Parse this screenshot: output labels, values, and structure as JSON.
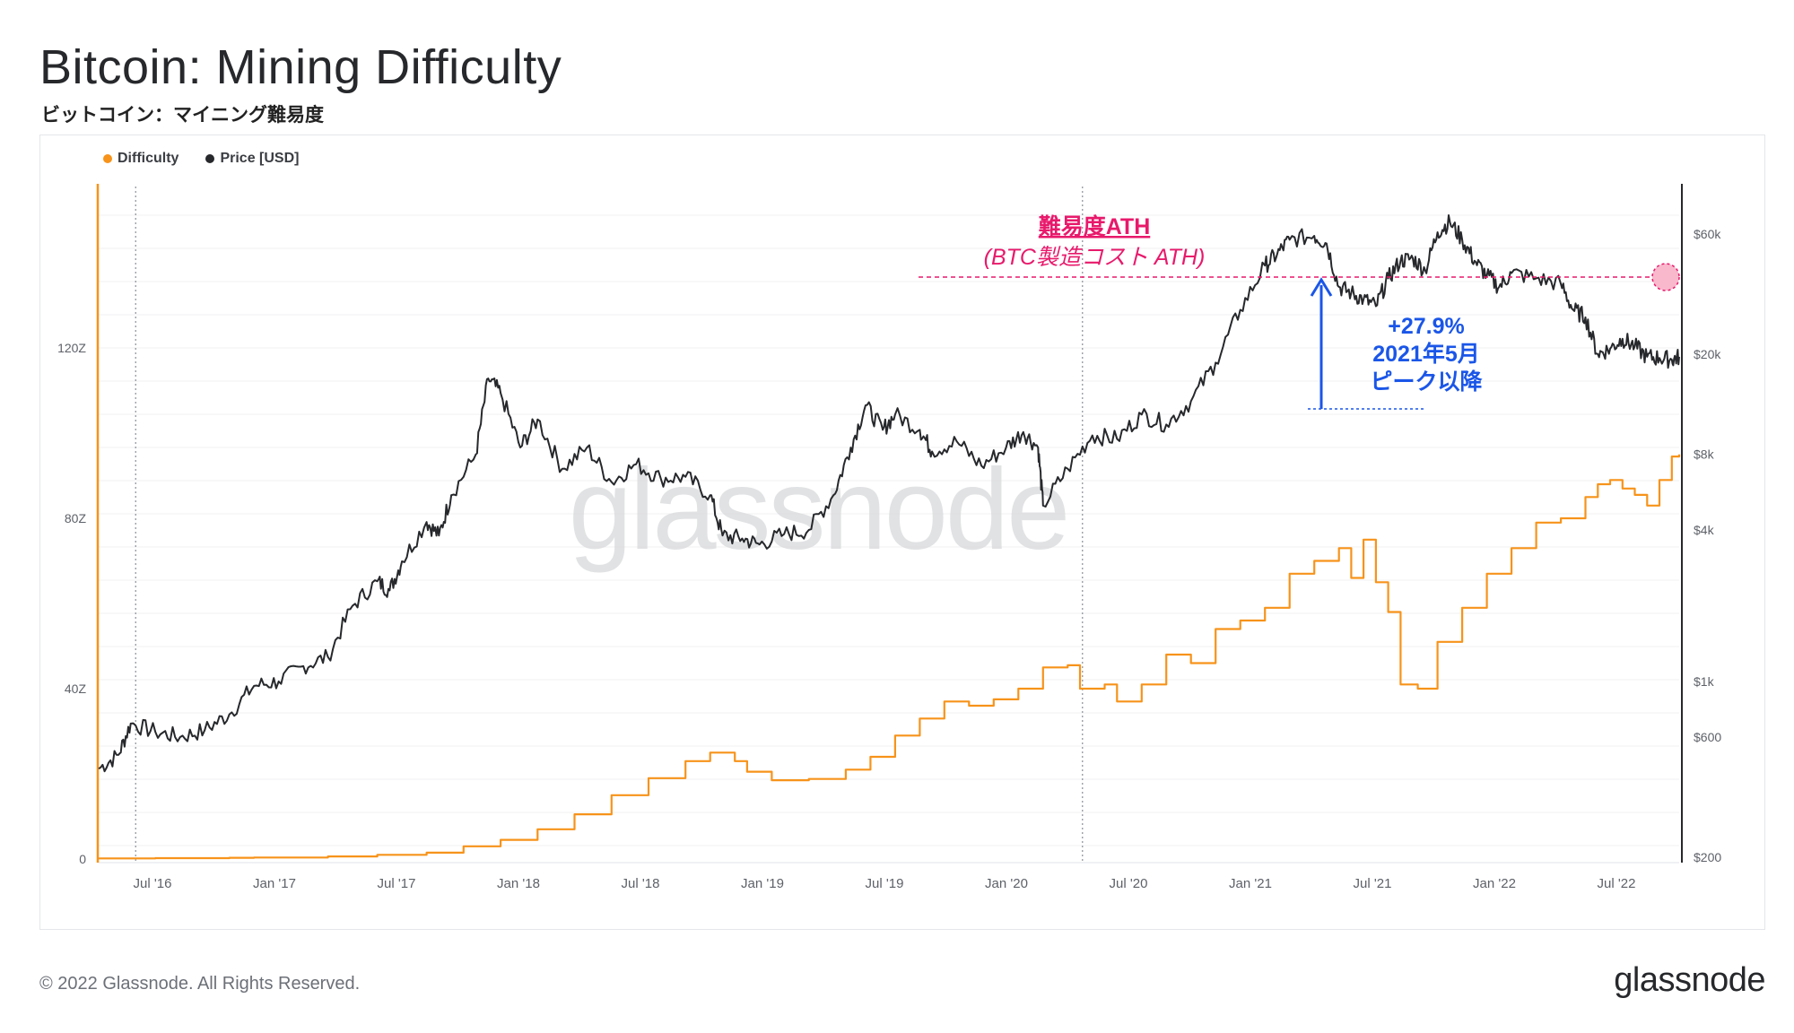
{
  "header": {
    "title": "Bitcoin: Mining Difficulty",
    "subtitle": "ビットコイン：マイニング難易度"
  },
  "legend": [
    {
      "label": "Difficulty",
      "color": "#f7931a"
    },
    {
      "label": "Price [USD]",
      "color": "#26282b"
    }
  ],
  "footer": {
    "copyright": "© 2022 Glassnode. All Rights Reserved.",
    "brand": "glassnode"
  },
  "watermark": "glassnode",
  "annotations": {
    "ath_title": "難易度ATH",
    "ath_sub": "(BTC製造コスト ATH)",
    "change_pct": "+27.9%",
    "change_line2": "2021年5月",
    "change_line3": "ピーク以降"
  },
  "chart_data": {
    "type": "line",
    "title": "Bitcoin: Mining Difficulty",
    "x_ticks": [
      "Jul '16",
      "Jan '17",
      "Jul '17",
      "Jan '18",
      "Jul '18",
      "Jan '19",
      "Jul '19",
      "Jan '20",
      "Jul '20",
      "Jan '21",
      "Jul '21",
      "Jan '22",
      "Jul '22"
    ],
    "x_range": [
      2016.37,
      2022.78
    ],
    "left_axis": {
      "label": "Difficulty",
      "ticks": [
        "0",
        "40Z",
        "80Z",
        "120Z"
      ],
      "tick_values": [
        0,
        40,
        80,
        120
      ],
      "range": [
        0,
        160
      ]
    },
    "right_axis": {
      "label": "Price [USD]",
      "scale": "log",
      "ticks": [
        "$200",
        "$600",
        "$1k",
        "$4k",
        "$8k",
        "$20k",
        "$60k"
      ],
      "tick_values": [
        200,
        600,
        1000,
        4000,
        8000,
        20000,
        60000
      ],
      "range": [
        200,
        90000
      ]
    },
    "series": [
      {
        "name": "Difficulty",
        "color": "#f7931a",
        "axis": "left",
        "points": [
          [
            2016.37,
            0.15
          ],
          [
            2016.6,
            0.2
          ],
          [
            2016.9,
            0.3
          ],
          [
            2017.0,
            0.35
          ],
          [
            2017.3,
            0.6
          ],
          [
            2017.5,
            1.0
          ],
          [
            2017.7,
            1.5
          ],
          [
            2017.85,
            3.0
          ],
          [
            2018.0,
            4.5
          ],
          [
            2018.15,
            7
          ],
          [
            2018.3,
            10.5
          ],
          [
            2018.45,
            15
          ],
          [
            2018.6,
            19
          ],
          [
            2018.75,
            23
          ],
          [
            2018.85,
            25
          ],
          [
            2018.95,
            23
          ],
          [
            2019.0,
            20.5
          ],
          [
            2019.1,
            18.5
          ],
          [
            2019.25,
            18.8
          ],
          [
            2019.4,
            21
          ],
          [
            2019.5,
            24
          ],
          [
            2019.6,
            29
          ],
          [
            2019.7,
            33
          ],
          [
            2019.8,
            37
          ],
          [
            2019.9,
            36
          ],
          [
            2020.0,
            37.5
          ],
          [
            2020.1,
            40
          ],
          [
            2020.2,
            45
          ],
          [
            2020.3,
            45.5
          ],
          [
            2020.35,
            40
          ],
          [
            2020.45,
            41
          ],
          [
            2020.5,
            37
          ],
          [
            2020.6,
            41
          ],
          [
            2020.7,
            48
          ],
          [
            2020.8,
            46
          ],
          [
            2020.9,
            54
          ],
          [
            2021.0,
            56
          ],
          [
            2021.1,
            59
          ],
          [
            2021.2,
            67
          ],
          [
            2021.3,
            70
          ],
          [
            2021.4,
            73
          ],
          [
            2021.45,
            66
          ],
          [
            2021.5,
            75
          ],
          [
            2021.55,
            65
          ],
          [
            2021.6,
            58
          ],
          [
            2021.65,
            41
          ],
          [
            2021.72,
            40
          ],
          [
            2021.8,
            51
          ],
          [
            2021.9,
            59
          ],
          [
            2022.0,
            67
          ],
          [
            2022.1,
            73
          ],
          [
            2022.2,
            79
          ],
          [
            2022.3,
            80
          ],
          [
            2022.4,
            85
          ],
          [
            2022.45,
            88
          ],
          [
            2022.5,
            89
          ],
          [
            2022.55,
            87
          ],
          [
            2022.6,
            85.5
          ],
          [
            2022.65,
            83
          ],
          [
            2022.7,
            89
          ],
          [
            2022.75,
            94.5
          ],
          [
            2022.78,
            95
          ]
        ]
      },
      {
        "name": "Price [USD]",
        "color": "#26282b",
        "axis": "right",
        "points": [
          [
            2016.37,
            450
          ],
          [
            2016.45,
            510
          ],
          [
            2016.5,
            680
          ],
          [
            2016.6,
            630
          ],
          [
            2016.7,
            600
          ],
          [
            2016.8,
            640
          ],
          [
            2016.9,
            740
          ],
          [
            2017.0,
            960
          ],
          [
            2017.1,
            1000
          ],
          [
            2017.2,
            1150
          ],
          [
            2017.3,
            1250
          ],
          [
            2017.4,
            2000
          ],
          [
            2017.5,
            2500
          ],
          [
            2017.55,
            2300
          ],
          [
            2017.6,
            3000
          ],
          [
            2017.7,
            4300
          ],
          [
            2017.75,
            3800
          ],
          [
            2017.8,
            5500
          ],
          [
            2017.9,
            8000
          ],
          [
            2017.95,
            16000
          ],
          [
            2018.0,
            14000
          ],
          [
            2018.08,
            8500
          ],
          [
            2018.15,
            11000
          ],
          [
            2018.25,
            7000
          ],
          [
            2018.35,
            8500
          ],
          [
            2018.45,
            6200
          ],
          [
            2018.55,
            7300
          ],
          [
            2018.65,
            6400
          ],
          [
            2018.75,
            6500
          ],
          [
            2018.85,
            5500
          ],
          [
            2018.9,
            3800
          ],
          [
            2018.98,
            3700
          ],
          [
            2019.05,
            3500
          ],
          [
            2019.15,
            3850
          ],
          [
            2019.25,
            4000
          ],
          [
            2019.35,
            5500
          ],
          [
            2019.42,
            8500
          ],
          [
            2019.48,
            12500
          ],
          [
            2019.55,
            10000
          ],
          [
            2019.6,
            11500
          ],
          [
            2019.7,
            10000
          ],
          [
            2019.75,
            8200
          ],
          [
            2019.85,
            9000
          ],
          [
            2019.95,
            7200
          ],
          [
            2020.05,
            8500
          ],
          [
            2020.12,
            9800
          ],
          [
            2020.18,
            8500
          ],
          [
            2020.2,
            5000
          ],
          [
            2020.3,
            7000
          ],
          [
            2020.4,
            9500
          ],
          [
            2020.5,
            9200
          ],
          [
            2020.6,
            11500
          ],
          [
            2020.7,
            10500
          ],
          [
            2020.8,
            13000
          ],
          [
            2020.9,
            18500
          ],
          [
            2021.0,
            30000
          ],
          [
            2021.1,
            45000
          ],
          [
            2021.15,
            50000
          ],
          [
            2021.2,
            57000
          ],
          [
            2021.3,
            59000
          ],
          [
            2021.35,
            55000
          ],
          [
            2021.4,
            37000
          ],
          [
            2021.45,
            35000
          ],
          [
            2021.5,
            33000
          ],
          [
            2021.55,
            31000
          ],
          [
            2021.6,
            40000
          ],
          [
            2021.65,
            47000
          ],
          [
            2021.7,
            48000
          ],
          [
            2021.75,
            43000
          ],
          [
            2021.8,
            61000
          ],
          [
            2021.85,
            67000
          ],
          [
            2021.9,
            57000
          ],
          [
            2021.95,
            47000
          ],
          [
            2022.0,
            41000
          ],
          [
            2022.05,
            37000
          ],
          [
            2022.1,
            42000
          ],
          [
            2022.2,
            40000
          ],
          [
            2022.3,
            38000
          ],
          [
            2022.35,
            30000
          ],
          [
            2022.4,
            28000
          ],
          [
            2022.45,
            20000
          ],
          [
            2022.5,
            21000
          ],
          [
            2022.55,
            23000
          ],
          [
            2022.6,
            21500
          ],
          [
            2022.65,
            19500
          ],
          [
            2022.7,
            19300
          ],
          [
            2022.75,
            19000
          ],
          [
            2022.78,
            19500
          ]
        ]
      }
    ]
  }
}
